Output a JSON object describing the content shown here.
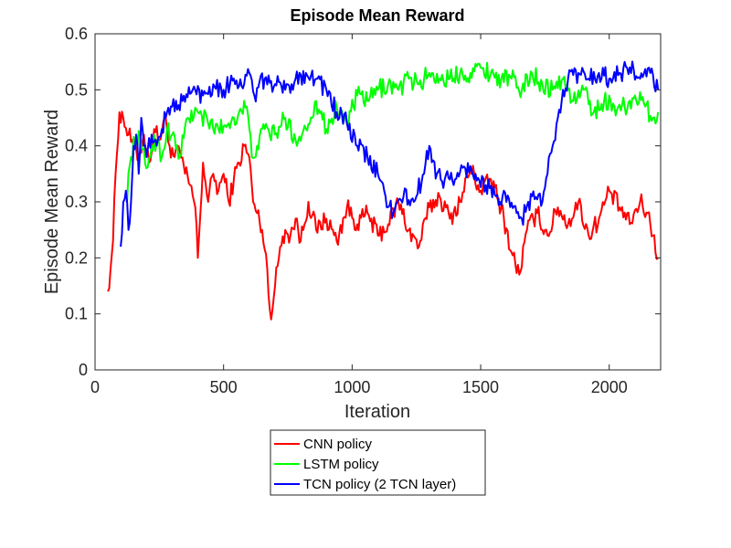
{
  "chart_data": {
    "type": "line",
    "title": "Episode Mean Reward",
    "xlabel": "Iteration",
    "ylabel": "Episode Mean Reward",
    "xlim": [
      0,
      2200
    ],
    "ylim": [
      0,
      0.6
    ],
    "xticks": [
      0,
      500,
      1000,
      1500,
      2000
    ],
    "yticks": [
      0,
      0.1,
      0.2,
      0.3,
      0.4,
      0.5,
      0.6
    ],
    "xtick_labels": [
      "0",
      "500",
      "1000",
      "1500",
      "2000"
    ],
    "ytick_labels": [
      "0",
      "0.1",
      "0.2",
      "0.3",
      "0.4",
      "0.5",
      "0.6"
    ],
    "legend_position": "below-center",
    "series": [
      {
        "name": "CNN policy",
        "color": "#ff0000",
        "x": [
          50,
          70,
          80,
          95,
          110,
          130,
          150,
          170,
          190,
          210,
          230,
          250,
          270,
          290,
          310,
          330,
          350,
          370,
          390,
          400,
          420,
          440,
          460,
          480,
          500,
          520,
          540,
          560,
          580,
          600,
          615,
          630,
          650,
          670,
          685,
          700,
          720,
          740,
          760,
          780,
          800,
          830,
          860,
          900,
          940,
          980,
          1020,
          1060,
          1100,
          1140,
          1180,
          1220,
          1260,
          1300,
          1340,
          1380,
          1420,
          1460,
          1500,
          1540,
          1580,
          1620,
          1650,
          1680,
          1720,
          1760,
          1800,
          1840,
          1880,
          1920,
          1960,
          2000,
          2040,
          2080,
          2120,
          2150,
          2170,
          2190
        ],
        "values": [
          0.14,
          0.23,
          0.35,
          0.46,
          0.45,
          0.42,
          0.4,
          0.38,
          0.42,
          0.37,
          0.43,
          0.41,
          0.45,
          0.4,
          0.38,
          0.39,
          0.35,
          0.33,
          0.29,
          0.2,
          0.37,
          0.3,
          0.35,
          0.32,
          0.35,
          0.3,
          0.34,
          0.37,
          0.4,
          0.38,
          0.3,
          0.28,
          0.25,
          0.18,
          0.09,
          0.15,
          0.22,
          0.25,
          0.24,
          0.27,
          0.23,
          0.3,
          0.25,
          0.27,
          0.23,
          0.29,
          0.26,
          0.28,
          0.24,
          0.26,
          0.3,
          0.25,
          0.22,
          0.29,
          0.31,
          0.27,
          0.3,
          0.36,
          0.32,
          0.34,
          0.29,
          0.21,
          0.17,
          0.25,
          0.28,
          0.24,
          0.29,
          0.26,
          0.3,
          0.24,
          0.27,
          0.32,
          0.29,
          0.26,
          0.3,
          0.28,
          0.24,
          0.2
        ]
      },
      {
        "name": "LSTM policy",
        "color": "#00ff00",
        "x": [
          120,
          140,
          160,
          180,
          200,
          220,
          240,
          260,
          280,
          300,
          330,
          360,
          400,
          440,
          480,
          520,
          560,
          590,
          610,
          630,
          660,
          700,
          740,
          780,
          820,
          860,
          900,
          940,
          980,
          1020,
          1060,
          1100,
          1140,
          1180,
          1220,
          1260,
          1300,
          1340,
          1380,
          1420,
          1460,
          1500,
          1540,
          1580,
          1620,
          1660,
          1700,
          1740,
          1780,
          1820,
          1860,
          1900,
          1940,
          1980,
          2020,
          2060,
          2100,
          2140,
          2170,
          2190
        ],
        "values": [
          0.3,
          0.38,
          0.42,
          0.4,
          0.36,
          0.4,
          0.41,
          0.38,
          0.43,
          0.42,
          0.38,
          0.45,
          0.46,
          0.44,
          0.43,
          0.44,
          0.46,
          0.47,
          0.38,
          0.4,
          0.43,
          0.42,
          0.45,
          0.41,
          0.43,
          0.48,
          0.43,
          0.47,
          0.44,
          0.49,
          0.48,
          0.5,
          0.51,
          0.5,
          0.52,
          0.51,
          0.53,
          0.52,
          0.52,
          0.53,
          0.53,
          0.54,
          0.53,
          0.52,
          0.52,
          0.5,
          0.53,
          0.51,
          0.5,
          0.52,
          0.48,
          0.5,
          0.46,
          0.48,
          0.47,
          0.47,
          0.49,
          0.47,
          0.45,
          0.46
        ]
      },
      {
        "name": "TCN policy (2 TCN layer)",
        "color": "#0000ff",
        "x": [
          100,
          110,
          120,
          130,
          140,
          150,
          160,
          170,
          180,
          190,
          200,
          220,
          240,
          260,
          280,
          300,
          340,
          380,
          420,
          460,
          500,
          540,
          580,
          600,
          620,
          660,
          700,
          740,
          780,
          820,
          860,
          900,
          940,
          980,
          1020,
          1060,
          1100,
          1130,
          1160,
          1200,
          1240,
          1280,
          1300,
          1330,
          1360,
          1400,
          1440,
          1480,
          1520,
          1560,
          1600,
          1640,
          1660,
          1700,
          1740,
          1760,
          1780,
          1800,
          1820,
          1840,
          1880,
          1920,
          1960,
          2000,
          2040,
          2080,
          2120,
          2160,
          2190
        ],
        "values": [
          0.22,
          0.3,
          0.32,
          0.25,
          0.3,
          0.4,
          0.42,
          0.35,
          0.45,
          0.4,
          0.38,
          0.42,
          0.4,
          0.43,
          0.46,
          0.47,
          0.48,
          0.5,
          0.49,
          0.51,
          0.5,
          0.52,
          0.51,
          0.53,
          0.49,
          0.52,
          0.51,
          0.5,
          0.52,
          0.53,
          0.52,
          0.5,
          0.46,
          0.44,
          0.4,
          0.38,
          0.35,
          0.31,
          0.28,
          0.31,
          0.3,
          0.35,
          0.4,
          0.35,
          0.34,
          0.34,
          0.36,
          0.35,
          0.33,
          0.31,
          0.3,
          0.28,
          0.27,
          0.31,
          0.3,
          0.35,
          0.4,
          0.45,
          0.5,
          0.52,
          0.53,
          0.52,
          0.53,
          0.52,
          0.53,
          0.54,
          0.52,
          0.53,
          0.5
        ]
      }
    ]
  }
}
